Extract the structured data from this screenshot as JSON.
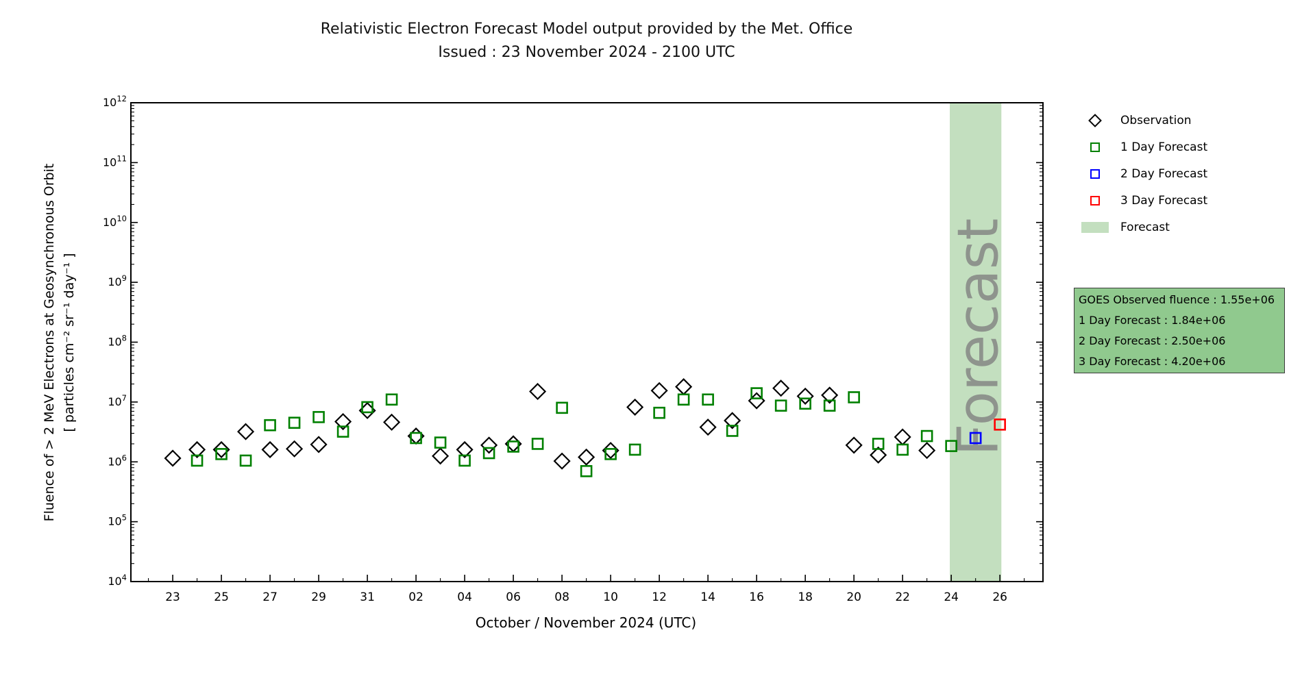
{
  "chart": {
    "title": "Relativistic Electron Forecast Model output provided by the Met. Office",
    "subtitle": "Issued : 23 November 2024 - 2100 UTC",
    "x_label": "October / November 2024 (UTC)",
    "y_label_line1": "Fluence of > 2 MeV Electrons at Geosynchronous Orbit",
    "y_label_line2": "[ particles cm⁻² sr⁻¹ day⁻¹ ]"
  },
  "colors": {
    "observation": "#000000",
    "forecast_1day": "#008000",
    "forecast_2day": "#0000ff",
    "forecast_3day": "#ff0000",
    "forecast_band_fill": "#c3dfbf",
    "watermark_gray": "#808080",
    "info_box_fill": "#90c98e",
    "axis": "#000000"
  },
  "legend": {
    "items": [
      {
        "label": "Observation",
        "marker": "diamond",
        "color": "#000000"
      },
      {
        "label": "1 Day Forecast",
        "marker": "square",
        "color": "#008000"
      },
      {
        "label": "2 Day Forecast",
        "marker": "square",
        "color": "#0000ff"
      },
      {
        "label": "3 Day Forecast",
        "marker": "square",
        "color": "#ff0000"
      },
      {
        "label": "Forecast",
        "marker": "patch",
        "color": "#c3dfbf"
      }
    ]
  },
  "info_box": {
    "fill": "#90c98e",
    "lines": [
      "GOES Observed fluence : 1.55e+06",
      "1 Day Forecast : 1.84e+06",
      "2 Day Forecast : 2.50e+06",
      "3 Day Forecast : 4.20e+06"
    ]
  },
  "watermark": {
    "text": "Forecast",
    "color": "#808080",
    "opacity": 0.78
  },
  "chart_data": {
    "type": "scatter",
    "y_scale": "log",
    "y_range": [
      10000.0,
      1000000000000.0
    ],
    "y_major_exponents": [
      4,
      5,
      6,
      7,
      8,
      9,
      10,
      11,
      12
    ],
    "x_day0_date": "2024-10-23",
    "x_range_days": [
      -1.72,
      35.77
    ],
    "x_major_ticks": [
      {
        "day": 0,
        "label": "23"
      },
      {
        "day": 2,
        "label": "25"
      },
      {
        "day": 4,
        "label": "27"
      },
      {
        "day": 6,
        "label": "29"
      },
      {
        "day": 8,
        "label": "31"
      },
      {
        "day": 10,
        "label": "02"
      },
      {
        "day": 12,
        "label": "04"
      },
      {
        "day": 14,
        "label": "06"
      },
      {
        "day": 16,
        "label": "08"
      },
      {
        "day": 18,
        "label": "10"
      },
      {
        "day": 20,
        "label": "12"
      },
      {
        "day": 22,
        "label": "14"
      },
      {
        "day": 24,
        "label": "16"
      },
      {
        "day": 26,
        "label": "18"
      },
      {
        "day": 28,
        "label": "20"
      },
      {
        "day": 30,
        "label": "22"
      },
      {
        "day": 32,
        "label": "24"
      },
      {
        "day": 34,
        "label": "26"
      }
    ],
    "x_minor_tick_days": [
      -1,
      1,
      3,
      5,
      7,
      9,
      11,
      13,
      15,
      17,
      19,
      21,
      23,
      25,
      27,
      29,
      31,
      33,
      35
    ],
    "forecast_band_days": [
      31.94,
      34.06
    ],
    "series": [
      {
        "name": "Observation",
        "marker": "diamond",
        "color": "#000000",
        "dates": [
          "Oct 23",
          "Oct 24",
          "Oct 25",
          "Oct 26",
          "Oct 27",
          "Oct 28",
          "Oct 29",
          "Oct 30",
          "Oct 31",
          "Nov 01",
          "Nov 02",
          "Nov 03",
          "Nov 04",
          "Nov 05",
          "Nov 06",
          "Nov 07",
          "Nov 08",
          "Nov 09",
          "Nov 10",
          "Nov 11",
          "Nov 12",
          "Nov 13",
          "Nov 14",
          "Nov 15",
          "Nov 16",
          "Nov 17",
          "Nov 18",
          "Nov 19",
          "Nov 20",
          "Nov 21",
          "Nov 22",
          "Nov 23"
        ],
        "days": [
          0,
          1,
          2,
          3,
          4,
          5,
          6,
          7,
          8,
          9,
          10,
          11,
          12,
          13,
          14,
          15,
          16,
          17,
          18,
          19,
          20,
          21,
          22,
          23,
          24,
          25,
          26,
          27,
          28,
          29,
          30,
          31
        ],
        "values": [
          1150000.0,
          1600000.0,
          1600000.0,
          3200000.0,
          1600000.0,
          1650000.0,
          1950000.0,
          4700000.0,
          7200000.0,
          4600000.0,
          2700000.0,
          1250000.0,
          1600000.0,
          1900000.0,
          2000000.0,
          15000000.0,
          1030000.0,
          1200000.0,
          1550000.0,
          8200000.0,
          15500000.0,
          18000000.0,
          3800000.0,
          4900000.0,
          10500000.0,
          17000000.0,
          12500000.0,
          13000000.0,
          1900000.0,
          1300000.0,
          2600000.0,
          1550000.0
        ]
      },
      {
        "name": "1 Day Forecast",
        "marker": "square",
        "color": "#008000",
        "dates": [
          "Oct 24",
          "Oct 25",
          "Oct 26",
          "Oct 27",
          "Oct 28",
          "Oct 29",
          "Oct 30",
          "Oct 31",
          "Nov 01",
          "Nov 02",
          "Nov 03",
          "Nov 04",
          "Nov 05",
          "Nov 06",
          "Nov 07",
          "Nov 08",
          "Nov 09",
          "Nov 10",
          "Nov 11",
          "Nov 12",
          "Nov 13",
          "Nov 14",
          "Nov 15",
          "Nov 16",
          "Nov 17",
          "Nov 18",
          "Nov 19",
          "Nov 20",
          "Nov 21",
          "Nov 22",
          "Nov 23",
          "Nov 24"
        ],
        "days": [
          1,
          2,
          3,
          4,
          5,
          6,
          7,
          8,
          9,
          10,
          11,
          12,
          13,
          14,
          15,
          16,
          17,
          18,
          19,
          20,
          21,
          22,
          23,
          24,
          25,
          26,
          27,
          28,
          29,
          30,
          31,
          32
        ],
        "values": [
          1050000.0,
          1350000.0,
          1050000.0,
          4100000.0,
          4500000.0,
          5600000.0,
          3200000.0,
          8200000.0,
          11000000.0,
          2500000.0,
          2100000.0,
          1050000.0,
          1400000.0,
          1800000.0,
          2000000.0,
          8000000.0,
          700000.0,
          1350000.0,
          1600000.0,
          6600000.0,
          11000000.0,
          11000000.0,
          3300000.0,
          14000000.0,
          8700000.0,
          9400000.0,
          8700000.0,
          12000000.0,
          2000000.0,
          1600000.0,
          2700000.0,
          1840000.0
        ]
      },
      {
        "name": "2 Day Forecast",
        "marker": "square",
        "color": "#0000ff",
        "dates": [
          "Nov 25"
        ],
        "days": [
          33
        ],
        "values": [
          2500000.0
        ]
      },
      {
        "name": "3 Day Forecast",
        "marker": "square",
        "color": "#ff0000",
        "dates": [
          "Nov 26"
        ],
        "days": [
          34
        ],
        "values": [
          4200000.0
        ]
      }
    ]
  }
}
